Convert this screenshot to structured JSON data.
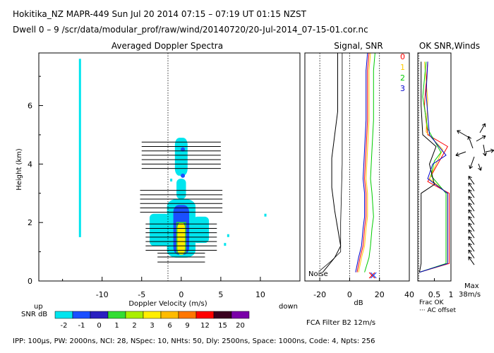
{
  "header": {
    "line1": "Hokitika_NZ  MAPR-449  Sun Jul 20 2014 07:15 – 07:19 UT 01:15 NZST",
    "line2": "Dwell  0 – 9   /scr/data/modular_prof/raw/wind/20140720/20-Jul-2014_07-15-01.cor.nc"
  },
  "footer": {
    "params": "IPP: 100μs,  PW: 2000ns,  NCI:  28,  NSpec: 10, NHts: 50,  Dly: 2500ns,  Space: 1000ns,  Code: 4,  Npts: 256",
    "fca": "FCA Filter B2 12m/s"
  },
  "colors": {
    "cyan": "#00e5ee",
    "blue": "#1a4fff",
    "dark_blue": "#2a20c0",
    "green": "#33dd33",
    "yellow": "#ffee00",
    "red": "#ff0000",
    "orange": "#ff9900",
    "purple": "#7a00a8"
  },
  "chart_data": [
    {
      "type": "heatmap",
      "title": "Averaged Doppler Spectra",
      "xlabel": "Doppler Velocity (m/s)",
      "ylabel": "Height (km)",
      "xlim": [
        -18,
        15
      ],
      "ylim": [
        0,
        7.8
      ],
      "x_ticks": [
        -10,
        -5,
        0,
        5,
        10
      ],
      "y_ticks": [
        0,
        2,
        4,
        6
      ],
      "direction_labels": {
        "left": "up",
        "right": "down"
      },
      "colorbar": {
        "label": "SNR dB",
        "ticks": [
          "-2",
          "-1",
          "0",
          "1",
          "2",
          "3",
          "6",
          "9",
          "12",
          "15",
          "20"
        ],
        "colors": [
          "#00e5ee",
          "#1a4fff",
          "#2a20c0",
          "#33dd33",
          "#aaee00",
          "#ffee00",
          "#ffbb00",
          "#ff7700",
          "#ff0000",
          "#3a0020",
          "#7a00a8"
        ]
      },
      "echo_regions": [
        {
          "level": "cyan",
          "v_from": -1.8,
          "v_to": 1.8,
          "h_from": 0.8,
          "h_to": 2.8
        },
        {
          "level": "cyan",
          "v_from": -0.8,
          "v_to": 0.8,
          "h_from": 3.6,
          "h_to": 4.9
        },
        {
          "level": "blue",
          "v_from": -1.0,
          "v_to": 1.0,
          "h_from": 0.9,
          "h_to": 2.6
        },
        {
          "level": "yellow",
          "v_from": -0.5,
          "v_to": 0.5,
          "h_from": 0.9,
          "h_to": 2.0
        }
      ],
      "cyan_strip_velocity": -12.8,
      "moment_bar_heights": [
        4.75,
        4.6,
        4.45,
        4.3,
        4.15,
        4.0,
        3.85,
        3.1,
        2.95,
        2.8,
        2.65,
        2.5,
        2.35,
        1.95,
        1.8,
        1.65,
        1.5,
        1.35,
        1.2,
        1.05,
        0.95,
        0.82,
        0.65
      ]
    },
    {
      "type": "line",
      "title": "Signal, SNR",
      "xlabel": "dB",
      "xlim": [
        -30,
        40
      ],
      "x_ticks": [
        -20,
        0,
        20,
        40
      ],
      "ylim": [
        0,
        7.8
      ],
      "noise_label": "Noise",
      "series": [
        {
          "name": "0",
          "color": "#ff0000",
          "x": [
            5,
            7,
            9,
            10,
            11,
            11,
            10,
            11,
            12,
            12,
            12,
            13
          ],
          "y": [
            0.3,
            0.8,
            1.2,
            1.8,
            2.2,
            3.0,
            3.5,
            4.5,
            5.5,
            6.5,
            7.2,
            7.8
          ]
        },
        {
          "name": "1",
          "color": "#ffcc00",
          "x": [
            6,
            8,
            10,
            11,
            12,
            12,
            11,
            12,
            13,
            13,
            13,
            14
          ],
          "y": [
            0.3,
            0.8,
            1.2,
            1.8,
            2.2,
            3.0,
            3.5,
            4.5,
            5.5,
            6.5,
            7.2,
            7.8
          ]
        },
        {
          "name": "2",
          "color": "#00cc00",
          "x": [
            10,
            13,
            14,
            15,
            16,
            15,
            14,
            15,
            16,
            16,
            16,
            17
          ],
          "y": [
            0.3,
            0.8,
            1.2,
            1.8,
            2.2,
            3.0,
            3.5,
            4.5,
            5.5,
            6.5,
            7.2,
            7.8
          ]
        },
        {
          "name": "3",
          "color": "#0000cc",
          "x": [
            4,
            6,
            8,
            9,
            10,
            10,
            9,
            10,
            11,
            11,
            11,
            12
          ],
          "y": [
            0.3,
            0.8,
            1.2,
            1.8,
            2.2,
            3.0,
            3.5,
            4.5,
            5.5,
            6.5,
            7.2,
            7.8
          ]
        },
        {
          "name": "Signal",
          "color": "#000000",
          "x": [
            -18,
            -10,
            -6,
            -8,
            -10,
            -12,
            -12,
            -10,
            -8,
            -8,
            -8,
            -8
          ],
          "y": [
            0.3,
            0.8,
            1.2,
            1.8,
            2.4,
            3.2,
            4.2,
            5.0,
            5.8,
            6.5,
            7.2,
            7.8
          ]
        }
      ],
      "markers_x": [
        15,
        16
      ]
    },
    {
      "type": "line",
      "title": "OK SNR,Winds",
      "xlabel_lines": [
        "Frac OK",
        "··· AC offset"
      ],
      "xlim": [
        0,
        1
      ],
      "x_ticks": [
        "0.5",
        "1"
      ],
      "x_tick_values": [
        0.5,
        1
      ],
      "ylim": [
        0,
        7.8
      ],
      "legend": [
        {
          "label": "0",
          "color": "#ff0000"
        },
        {
          "label": "1",
          "color": "#ffcc00"
        },
        {
          "label": "2",
          "color": "#00cc00"
        },
        {
          "label": "3",
          "color": "#0000cc"
        }
      ],
      "wind_scale": {
        "label": "Max",
        "value": "38m/s"
      }
    }
  ]
}
